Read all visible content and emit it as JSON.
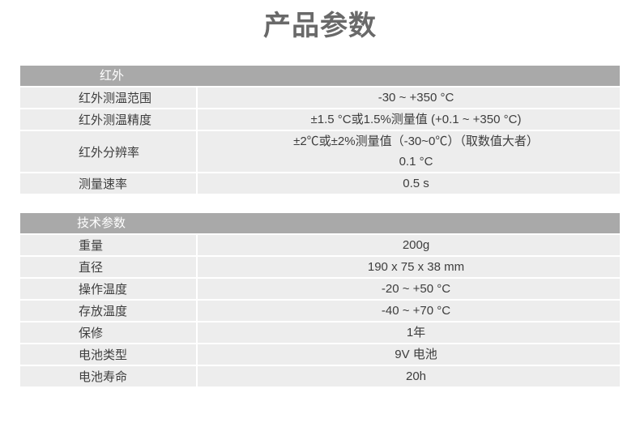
{
  "page": {
    "title": "产品参数"
  },
  "colors": {
    "header_bg": "#a9a9a9",
    "header_text": "#ffffff",
    "row_bg": "#ededed",
    "body_text": "#3d3d3d",
    "title_text": "#696969",
    "page_bg": "#ffffff"
  },
  "tables": [
    {
      "header": "红外",
      "rows": [
        {
          "label": "红外测温范围",
          "value": [
            "-30 ~ +350 °C"
          ]
        },
        {
          "label": "红外测温精度",
          "value": [
            "±1.5 °C或1.5%测量值 (+0.1 ~ +350 °C)"
          ]
        },
        {
          "label": "红外分辨率",
          "value": [
            "±2℃或±2%测量值（-30~0℃）（取数值大者）",
            "0.1 °C"
          ]
        },
        {
          "label": "测量速率",
          "value": [
            "0.5 s"
          ]
        }
      ]
    },
    {
      "header": "技术参数",
      "rows": [
        {
          "label": "重量",
          "value": [
            "200g"
          ]
        },
        {
          "label": "直径",
          "value": [
            "190 x 75 x 38 mm"
          ]
        },
        {
          "label": "操作温度",
          "value": [
            "-20 ~ +50 °C"
          ]
        },
        {
          "label": "存放温度",
          "value": [
            "-40 ~ +70 °C"
          ]
        },
        {
          "label": "保修",
          "value": [
            "1年"
          ]
        },
        {
          "label": "电池类型",
          "value": [
            "9V 电池"
          ]
        },
        {
          "label": "电池寿命",
          "value": [
            "20h"
          ]
        }
      ]
    }
  ]
}
